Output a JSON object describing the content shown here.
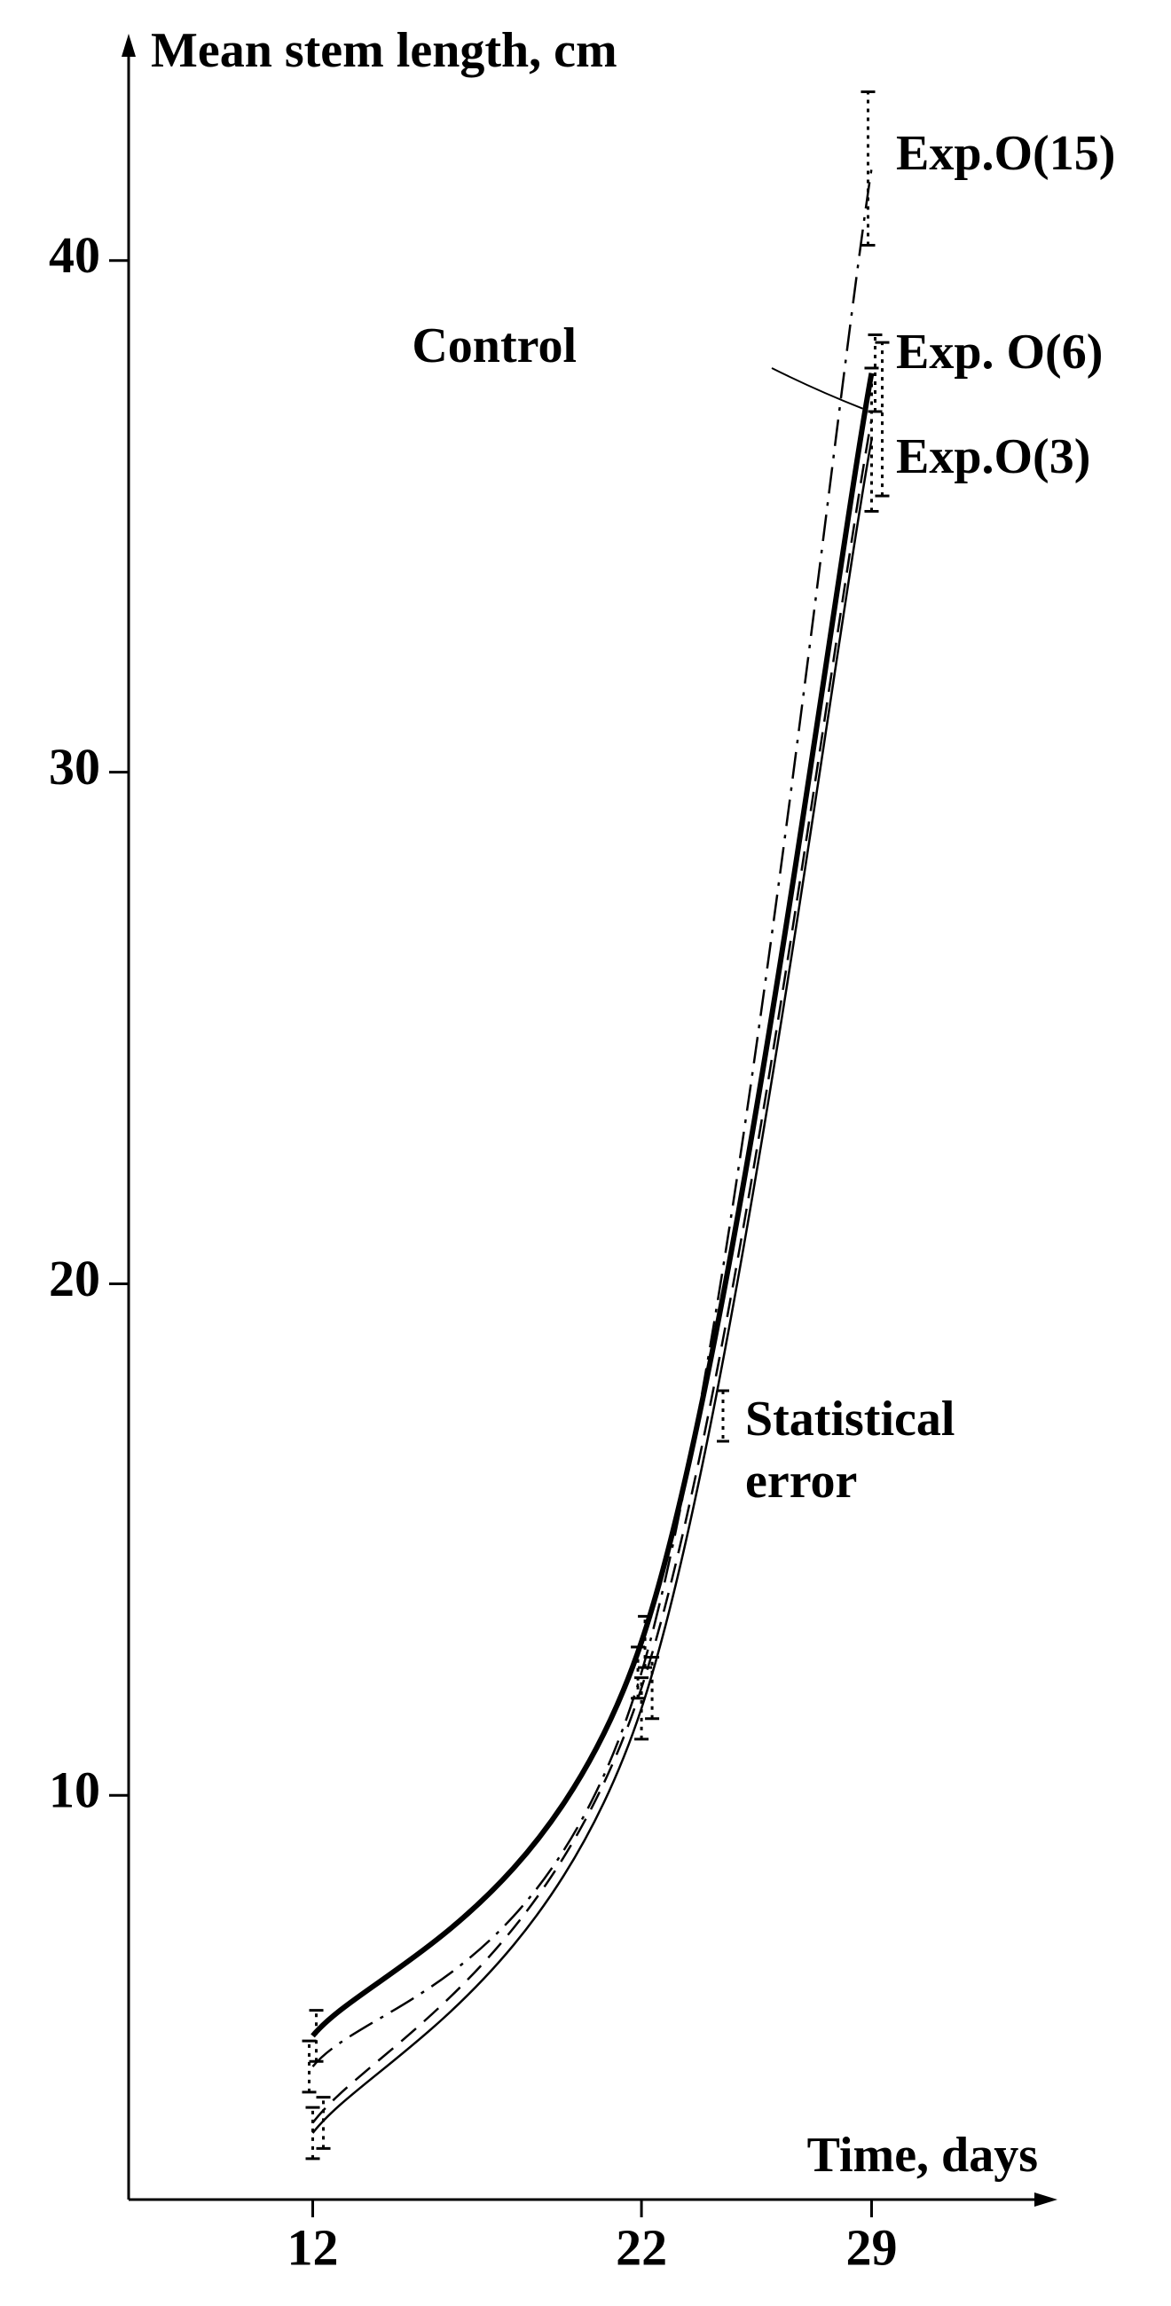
{
  "chart_data": {
    "type": "line",
    "y_label": "Mean stem length, cm",
    "x_label": "Time, days",
    "x": [
      12,
      22,
      29
    ],
    "xlim": [
      6.4,
      34.6
    ],
    "xticks": [
      12,
      22,
      29
    ],
    "ylim": [
      2.1,
      44.4
    ],
    "yticks": [
      10,
      20,
      30,
      40
    ],
    "color": "#000000",
    "series": [
      {
        "name": "Exp.O(15)",
        "dash": "dashdot",
        "values": [
          4.7,
          12.4,
          41.8
        ],
        "errors": [
          0.5,
          0.5,
          1.5
        ]
      },
      {
        "name": "Control",
        "dash": "solid-thick",
        "values": [
          5.3,
          13.0,
          37.8
        ],
        "errors": [
          0.5,
          0.5,
          0.75
        ]
      },
      {
        "name": "Exp. O(6)",
        "dash": "dashed",
        "values": [
          3.6,
          12.1,
          36.9
        ],
        "errors": [
          0.5,
          0.6,
          1.5
        ]
      },
      {
        "name": "Exp.O(3)",
        "dash": "solid",
        "values": [
          3.4,
          11.7,
          36.5
        ],
        "errors": [
          0.5,
          0.6,
          1.4
        ]
      }
    ],
    "annotation": "Statistical error"
  }
}
